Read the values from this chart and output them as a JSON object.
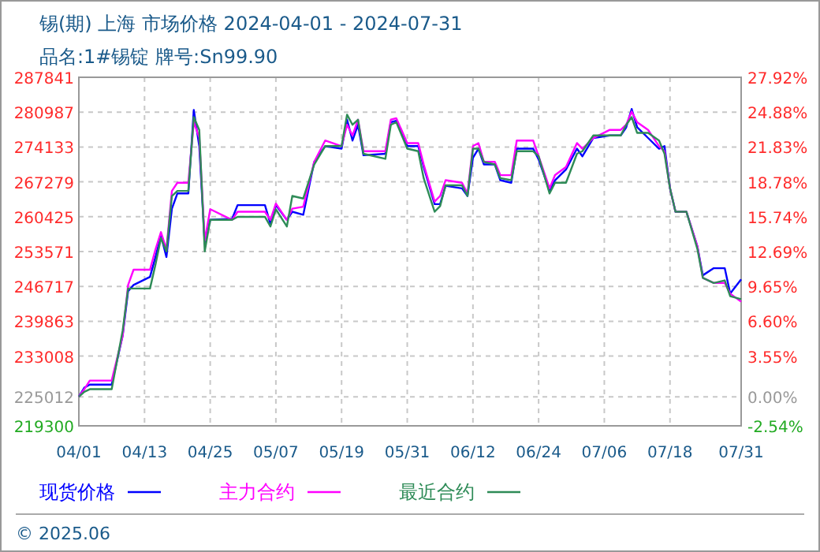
{
  "chart_data": {
    "type": "line",
    "title": "锡(期) 上海 市场价格 2024-04-01 - 2024-07-31",
    "subtitle": "品名:1#锡锭 牌号:Sn99.90",
    "x": [
      "2024-04-01",
      "2024-04-02",
      "2024-04-03",
      "2024-04-07",
      "2024-04-09",
      "2024-04-10",
      "2024-04-11",
      "2024-04-14",
      "2024-04-15",
      "2024-04-16",
      "2024-04-17",
      "2024-04-18",
      "2024-04-19",
      "2024-04-21",
      "2024-04-22",
      "2024-04-23",
      "2024-04-24",
      "2024-04-25",
      "2024-04-29",
      "2024-04-30",
      "2024-05-05",
      "2024-05-06",
      "2024-05-07",
      "2024-05-09",
      "2024-05-10",
      "2024-05-12",
      "2024-05-14",
      "2024-05-16",
      "2024-05-19",
      "2024-05-20",
      "2024-05-21",
      "2024-05-22",
      "2024-05-23",
      "2024-05-27",
      "2024-05-28",
      "2024-05-29",
      "2024-05-31",
      "2024-06-02",
      "2024-06-03",
      "2024-06-05",
      "2024-06-06",
      "2024-06-07",
      "2024-06-10",
      "2024-06-11",
      "2024-06-12",
      "2024-06-13",
      "2024-06-14",
      "2024-06-16",
      "2024-06-17",
      "2024-06-19",
      "2024-06-20",
      "2024-06-23",
      "2024-06-24",
      "2024-06-26",
      "2024-06-27",
      "2024-06-29",
      "2024-07-01",
      "2024-07-02",
      "2024-07-04",
      "2024-07-07",
      "2024-07-09",
      "2024-07-10",
      "2024-07-11",
      "2024-07-12",
      "2024-07-14",
      "2024-07-16",
      "2024-07-17",
      "2024-07-18",
      "2024-07-19",
      "2024-07-21",
      "2024-07-23",
      "2024-07-24",
      "2024-07-26",
      "2024-07-28",
      "2024-07-29",
      "2024-07-31"
    ],
    "series": [
      {
        "name": "现货价格",
        "color": "#0000ff",
        "values": [
          225000,
          226800,
          227400,
          227400,
          237000,
          245800,
          247000,
          248600,
          252500,
          256700,
          252500,
          262000,
          265000,
          265000,
          281400,
          274300,
          255100,
          259800,
          260000,
          262700,
          262700,
          259000,
          262700,
          259800,
          261400,
          260800,
          271200,
          274300,
          273800,
          279500,
          275400,
          278500,
          272500,
          272800,
          279000,
          279300,
          274300,
          274300,
          270200,
          262900,
          262900,
          266500,
          266000,
          264500,
          272000,
          273800,
          270700,
          270700,
          267600,
          267100,
          273800,
          273800,
          271700,
          265500,
          267600,
          269700,
          273800,
          272300,
          275900,
          276400,
          276400,
          278000,
          281600,
          278000,
          275900,
          273800,
          274300,
          266000,
          261400,
          261400,
          254600,
          248900,
          250300,
          250300,
          245300,
          248100
        ]
      },
      {
        "name": "主力合约",
        "color": "#ff00ff",
        "values": [
          225000,
          226500,
          228200,
          228200,
          237000,
          247000,
          250000,
          250000,
          254000,
          257400,
          254000,
          265500,
          267100,
          267100,
          279000,
          276000,
          255700,
          261900,
          259800,
          261400,
          261400,
          259800,
          263000,
          259800,
          262000,
          262400,
          271200,
          275400,
          274300,
          278500,
          276400,
          279500,
          273300,
          273300,
          279500,
          279800,
          274900,
          274900,
          270700,
          263400,
          264500,
          267600,
          267100,
          265000,
          274300,
          274900,
          271200,
          271200,
          268600,
          268600,
          275400,
          275400,
          272300,
          266000,
          268600,
          270200,
          274900,
          273800,
          275900,
          277500,
          277500,
          278500,
          281100,
          279000,
          277500,
          274300,
          273300,
          266000,
          261400,
          261400,
          254600,
          248400,
          247400,
          247400,
          245300,
          243700
        ]
      },
      {
        "name": "最近合约",
        "color": "#2e8b57",
        "values": [
          225000,
          226000,
          226500,
          226500,
          238000,
          246300,
          246300,
          246300,
          251000,
          256200,
          253600,
          264500,
          265500,
          265500,
          280000,
          277500,
          253600,
          259800,
          259800,
          260400,
          260400,
          258500,
          261900,
          258500,
          264500,
          264000,
          270700,
          274300,
          274300,
          280500,
          278500,
          279500,
          272800,
          271800,
          278500,
          279000,
          273800,
          273300,
          268000,
          261400,
          262500,
          266600,
          266600,
          264500,
          273800,
          273800,
          271200,
          270700,
          268000,
          267600,
          273300,
          273300,
          272300,
          265000,
          267100,
          267100,
          272800,
          273300,
          276400,
          276400,
          276400,
          278500,
          280000,
          276900,
          276900,
          275400,
          272800,
          266000,
          261400,
          261400,
          254100,
          248400,
          247400,
          247900,
          244800,
          244200
        ]
      }
    ],
    "xlim": [
      "2024-04-01",
      "2024-07-31"
    ],
    "xticks": [
      {
        "value": "2024-04-01",
        "label": "04/01"
      },
      {
        "value": "2024-04-13",
        "label": "04/13"
      },
      {
        "value": "2024-04-25",
        "label": "04/25"
      },
      {
        "value": "2024-05-07",
        "label": "05/07"
      },
      {
        "value": "2024-05-19",
        "label": "05/19"
      },
      {
        "value": "2024-05-31",
        "label": "05/31"
      },
      {
        "value": "2024-06-12",
        "label": "06/12"
      },
      {
        "value": "2024-06-24",
        "label": "06/24"
      },
      {
        "value": "2024-07-06",
        "label": "07/06"
      },
      {
        "value": "2024-07-18",
        "label": "07/18"
      },
      {
        "value": "2024-07-31",
        "label": "07/31"
      }
    ],
    "ylim": [
      219300,
      287841
    ],
    "yticks": [
      219300,
      225012,
      233008,
      239863,
      246717,
      253571,
      260425,
      267279,
      274133,
      280987,
      287841
    ],
    "y2lim": [
      -2.54,
      27.92
    ],
    "y2ticks": [
      {
        "value": -2.54,
        "label": "-2.54%"
      },
      {
        "value": 0,
        "label": "0.00%"
      },
      {
        "value": 3.55,
        "label": "3.55%"
      },
      {
        "value": 6.6,
        "label": "6.60%"
      },
      {
        "value": 9.65,
        "label": "9.65%"
      },
      {
        "value": 12.69,
        "label": "12.69%"
      },
      {
        "value": 15.74,
        "label": "15.74%"
      },
      {
        "value": 18.78,
        "label": "18.78%"
      },
      {
        "value": 21.83,
        "label": "21.83%"
      },
      {
        "value": 24.88,
        "label": "24.88%"
      },
      {
        "value": 27.92,
        "label": "27.92%"
      }
    ],
    "grid": true,
    "legend": "bottom",
    "annotations": [
      "© 2025.06"
    ]
  }
}
